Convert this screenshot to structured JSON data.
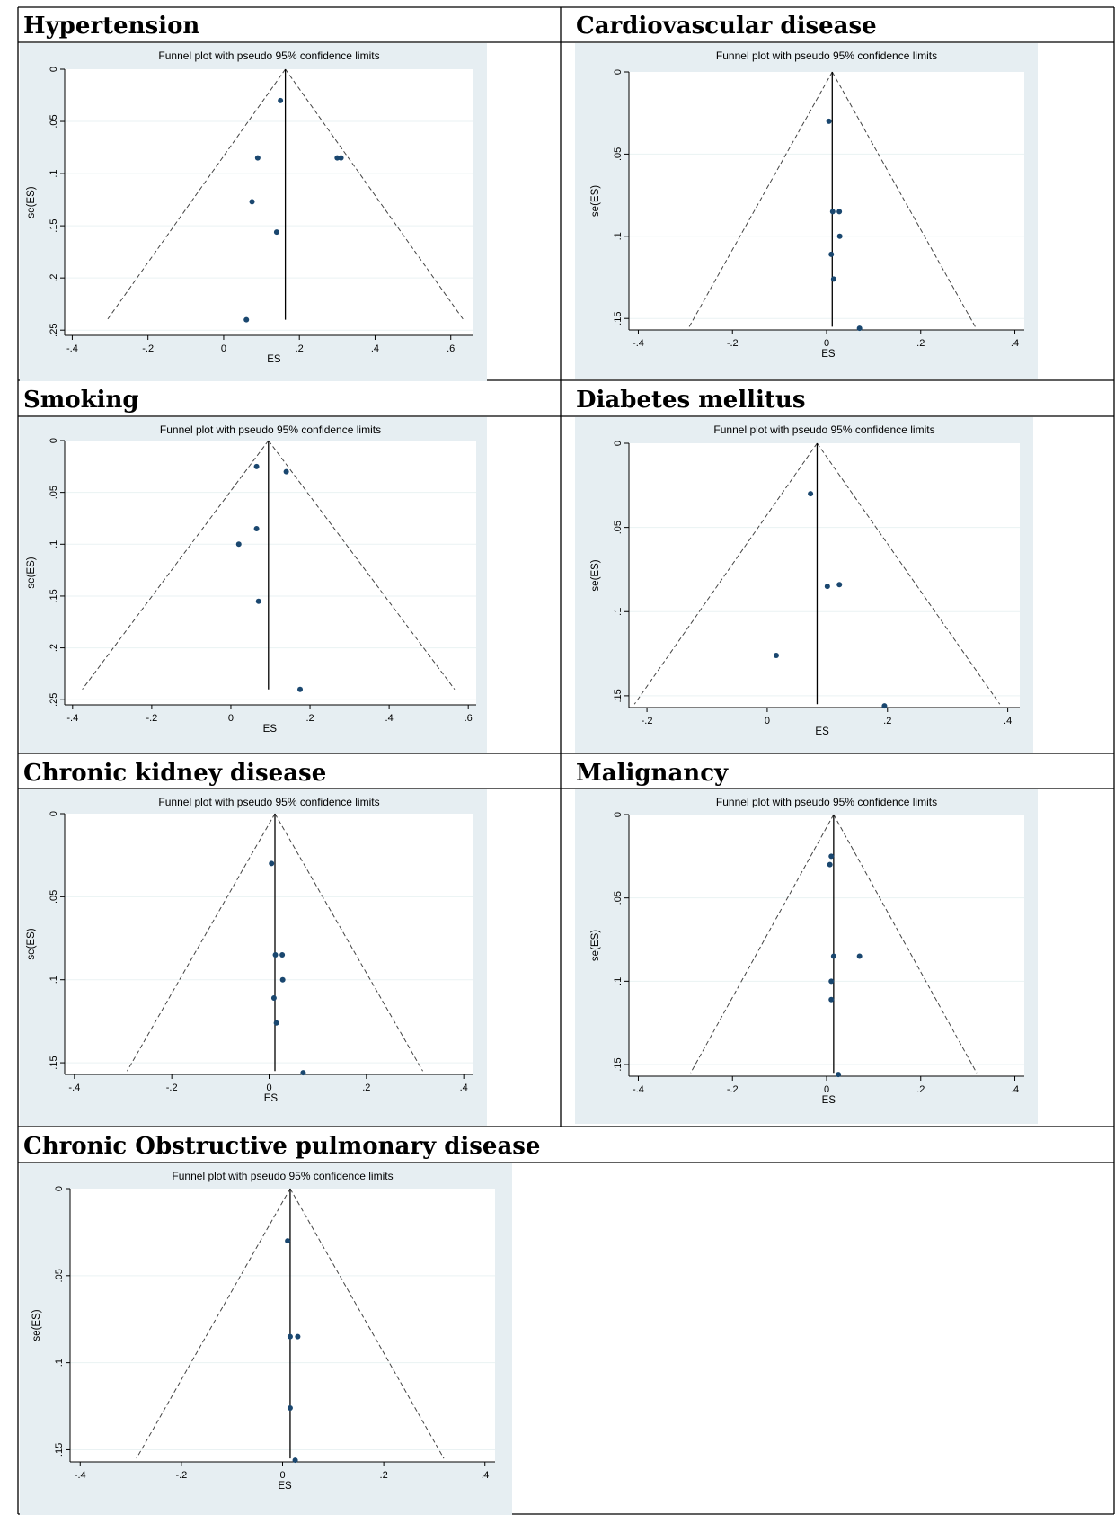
{
  "colors": {
    "panel_bg": "#e6eef2",
    "plot_bg": "#ffffff",
    "marker": "#1a476f",
    "gridline": "#eaf2f3",
    "border": "#000000"
  },
  "chart_data": [
    {
      "type": "scatter",
      "heading": "Hypertension",
      "title": "Funnel plot with pseudo 95% confidence limits",
      "xlabel": "ES",
      "ylabel": "se(ES)",
      "xticks": [
        "-.4",
        "-.2",
        "0",
        ".2",
        ".4",
        ".6"
      ],
      "yticks": [
        "0",
        ".05",
        ".1",
        ".15",
        ".2",
        ".25"
      ],
      "xlim": [
        -0.42,
        0.66
      ],
      "ylim": [
        0,
        0.255
      ],
      "grid": true,
      "y_reversed": true,
      "pooled_es": 0.163,
      "funnel_max_se": 0.24,
      "points": [
        {
          "x": 0.15,
          "y": 0.03
        },
        {
          "x": 0.09,
          "y": 0.085
        },
        {
          "x": 0.3,
          "y": 0.085
        },
        {
          "x": 0.31,
          "y": 0.085
        },
        {
          "x": 0.075,
          "y": 0.127
        },
        {
          "x": 0.14,
          "y": 0.156
        },
        {
          "x": 0.06,
          "y": 0.24
        }
      ]
    },
    {
      "type": "scatter",
      "heading": "Cardiovascular disease",
      "title": "Funnel plot with pseudo 95% confidence limits",
      "xlabel": "ES",
      "ylabel": "se(ES)",
      "xticks": [
        "-.4",
        "-.2",
        "0",
        ".2",
        ".4"
      ],
      "yticks": [
        "0",
        ".05",
        ".1",
        ".15"
      ],
      "xlim": [
        -0.42,
        0.42
      ],
      "ylim": [
        0,
        0.157
      ],
      "grid": true,
      "y_reversed": true,
      "pooled_es": 0.012,
      "funnel_max_se": 0.155,
      "points": [
        {
          "x": 0.005,
          "y": 0.03
        },
        {
          "x": 0.013,
          "y": 0.085
        },
        {
          "x": 0.027,
          "y": 0.085
        },
        {
          "x": 0.028,
          "y": 0.1
        },
        {
          "x": 0.01,
          "y": 0.111
        },
        {
          "x": 0.015,
          "y": 0.126
        },
        {
          "x": 0.07,
          "y": 0.156
        }
      ]
    },
    {
      "type": "scatter",
      "heading": "Smoking",
      "title": "Funnel plot with pseudo 95% confidence limits",
      "xlabel": "ES",
      "ylabel": "se(ES)",
      "xticks": [
        "-.4",
        "-.2",
        "0",
        ".2",
        ".4",
        ".6"
      ],
      "yticks": [
        "0",
        ".05",
        ".1",
        ".15",
        ".2",
        ".25"
      ],
      "xlim": [
        -0.42,
        0.62
      ],
      "ylim": [
        0,
        0.255
      ],
      "grid": true,
      "y_reversed": true,
      "pooled_es": 0.095,
      "funnel_max_se": 0.24,
      "points": [
        {
          "x": 0.065,
          "y": 0.025
        },
        {
          "x": 0.14,
          "y": 0.03
        },
        {
          "x": 0.065,
          "y": 0.085
        },
        {
          "x": 0.02,
          "y": 0.1
        },
        {
          "x": 0.07,
          "y": 0.155
        },
        {
          "x": 0.175,
          "y": 0.24
        }
      ]
    },
    {
      "type": "scatter",
      "heading": "Diabetes mellitus",
      "title": "Funnel plot with pseudo 95% confidence limits",
      "xlabel": "ES",
      "ylabel": "se(ES)",
      "xticks": [
        "-.2",
        "0",
        ".2",
        ".4"
      ],
      "yticks": [
        "0",
        ".05",
        ".1",
        ".15"
      ],
      "xlim": [
        -0.23,
        0.42
      ],
      "ylim": [
        0,
        0.157
      ],
      "grid": true,
      "y_reversed": true,
      "pooled_es": 0.083,
      "funnel_max_se": 0.155,
      "points": [
        {
          "x": 0.072,
          "y": 0.03
        },
        {
          "x": 0.1,
          "y": 0.085
        },
        {
          "x": 0.12,
          "y": 0.084
        },
        {
          "x": 0.015,
          "y": 0.126
        },
        {
          "x": 0.195,
          "y": 0.156
        }
      ]
    },
    {
      "type": "scatter",
      "heading": "Chronic kidney disease",
      "title": "Funnel plot with pseudo 95% confidence limits",
      "xlabel": "ES",
      "ylabel": "se(ES)",
      "xticks": [
        "-.4",
        "-.2",
        "0",
        ".2",
        ".4"
      ],
      "yticks": [
        "0",
        ".05",
        ".1",
        ".15"
      ],
      "xlim": [
        -0.42,
        0.42
      ],
      "ylim": [
        0,
        0.157
      ],
      "grid": true,
      "y_reversed": true,
      "pooled_es": 0.012,
      "funnel_max_se": 0.155,
      "points": [
        {
          "x": 0.005,
          "y": 0.03
        },
        {
          "x": 0.013,
          "y": 0.085
        },
        {
          "x": 0.027,
          "y": 0.085
        },
        {
          "x": 0.028,
          "y": 0.1
        },
        {
          "x": 0.01,
          "y": 0.111
        },
        {
          "x": 0.015,
          "y": 0.126
        },
        {
          "x": 0.07,
          "y": 0.156
        }
      ]
    },
    {
      "type": "scatter",
      "heading": "Malignancy",
      "title": "Funnel plot with pseudo 95% confidence limits",
      "xlabel": "ES",
      "ylabel": "se(ES)",
      "xticks": [
        "-.4",
        "-.2",
        "0",
        ".2",
        ".4"
      ],
      "yticks": [
        "0",
        ".05",
        ".1",
        ".15"
      ],
      "xlim": [
        -0.42,
        0.42
      ],
      "ylim": [
        0,
        0.157
      ],
      "grid": true,
      "y_reversed": true,
      "pooled_es": 0.015,
      "funnel_max_se": 0.155,
      "points": [
        {
          "x": 0.01,
          "y": 0.025
        },
        {
          "x": 0.007,
          "y": 0.03
        },
        {
          "x": 0.015,
          "y": 0.085
        },
        {
          "x": 0.07,
          "y": 0.085
        },
        {
          "x": 0.01,
          "y": 0.1
        },
        {
          "x": 0.01,
          "y": 0.111
        },
        {
          "x": 0.025,
          "y": 0.156
        }
      ]
    },
    {
      "type": "scatter",
      "heading": "Chronic Obstructive pulmonary disease",
      "title": "Funnel plot with pseudo 95% confidence limits",
      "xlabel": "ES",
      "ylabel": "se(ES)",
      "xticks": [
        "-.4",
        "-.2",
        "0",
        ".2",
        ".4"
      ],
      "yticks": [
        "0",
        ".05",
        ".1",
        ".15"
      ],
      "xlim": [
        -0.42,
        0.42
      ],
      "ylim": [
        0,
        0.157
      ],
      "grid": true,
      "y_reversed": true,
      "pooled_es": 0.015,
      "funnel_max_se": 0.155,
      "points": [
        {
          "x": 0.01,
          "y": 0.03
        },
        {
          "x": 0.015,
          "y": 0.085
        },
        {
          "x": 0.03,
          "y": 0.085
        },
        {
          "x": 0.015,
          "y": 0.126
        },
        {
          "x": 0.025,
          "y": 0.156
        }
      ]
    }
  ]
}
